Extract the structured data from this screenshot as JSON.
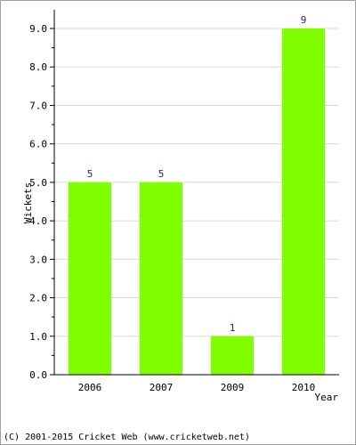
{
  "chart_data": {
    "type": "bar",
    "categories": [
      "2006",
      "2007",
      "2009",
      "2010"
    ],
    "values": [
      5,
      5,
      1,
      9
    ],
    "data_labels": [
      "5",
      "5",
      "1",
      "9"
    ],
    "title": "",
    "xlabel": "Year",
    "ylabel": "Wickets",
    "ylim": [
      0,
      9
    ],
    "yticks": [
      0,
      1,
      2,
      3,
      4,
      5,
      6,
      7,
      8,
      9
    ],
    "ytick_labels": [
      "0.0",
      "1.0",
      "2.0",
      "3.0",
      "4.0",
      "5.0",
      "6.0",
      "7.0",
      "8.0",
      "9.0"
    ],
    "grid": true,
    "legend": "none",
    "colors": {
      "bar": "#80ff00",
      "grid": "#d8d8d8",
      "axis": "#000000",
      "data_label": "#1a1aa0",
      "text": "#000000"
    }
  },
  "footer": {
    "copyright": "(C) 2001-2015 Cricket Web (www.cricketweb.net)"
  }
}
